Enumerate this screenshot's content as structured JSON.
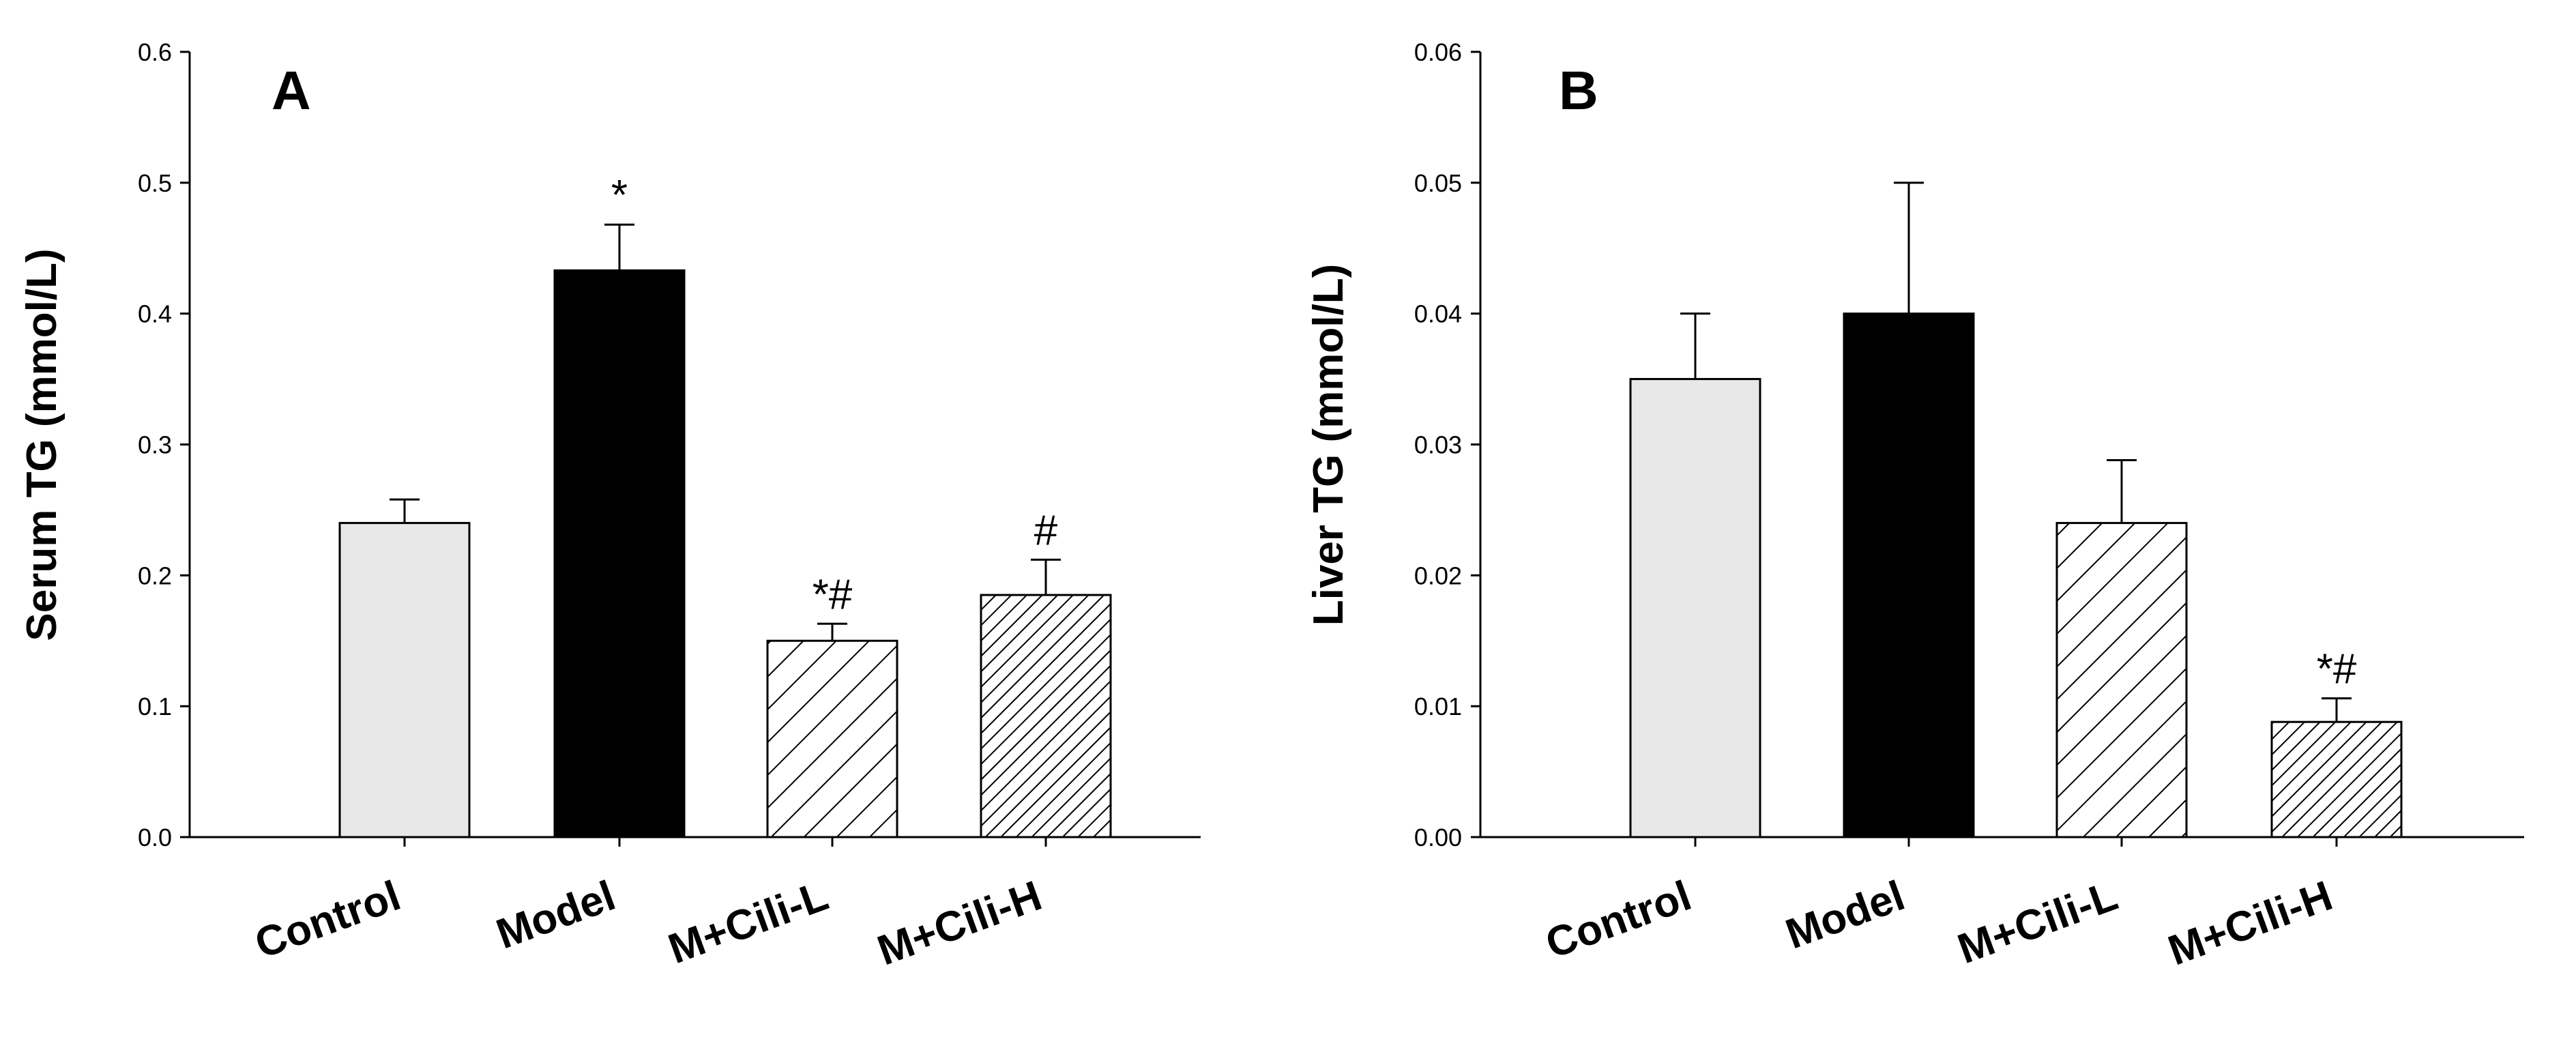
{
  "figure": {
    "panels": [
      "A",
      "B"
    ]
  },
  "chart_data": [
    {
      "type": "bar",
      "panel_label": "A",
      "ylabel": "Serum TG (mmol/L)",
      "xlabel": "",
      "ylim": [
        0,
        0.6
      ],
      "yticks": [
        "0.0",
        "0.1",
        "0.2",
        "0.3",
        "0.4",
        "0.5",
        "0.6"
      ],
      "categories": [
        "Control",
        "Model",
        "M+Cili-L",
        "M+Cili-H"
      ],
      "values": [
        0.24,
        0.433,
        0.15,
        0.185
      ],
      "errors": [
        0.018,
        0.035,
        0.013,
        0.027
      ],
      "annotations": [
        "",
        "*",
        "*#",
        "#"
      ],
      "fills": [
        "light-gray",
        "black",
        "sparse-hatch",
        "dense-hatch"
      ]
    },
    {
      "type": "bar",
      "panel_label": "B",
      "ylabel": "Liver TG (mmol/L)",
      "xlabel": "",
      "ylim": [
        0,
        0.06
      ],
      "yticks": [
        "0.00",
        "0.01",
        "0.02",
        "0.03",
        "0.04",
        "0.05",
        "0.06"
      ],
      "categories": [
        "Control",
        "Model",
        "M+Cili-L",
        "M+Cili-H"
      ],
      "values": [
        0.035,
        0.04,
        0.024,
        0.0088
      ],
      "errors": [
        0.005,
        0.01,
        0.0048,
        0.0018
      ],
      "annotations": [
        "",
        "",
        "",
        "*#"
      ],
      "fills": [
        "light-gray",
        "black",
        "sparse-hatch",
        "dense-hatch"
      ]
    }
  ]
}
